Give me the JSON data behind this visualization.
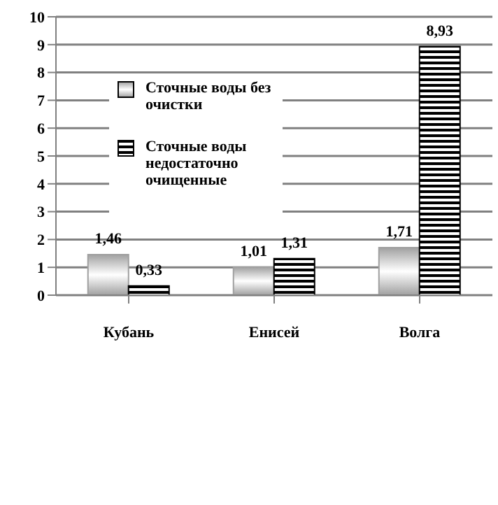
{
  "chart_data": {
    "type": "bar",
    "categories": [
      "Кубань",
      "Енисей",
      "Волга"
    ],
    "series": [
      {
        "name": "Сточные воды без очистки",
        "color": "#a0a0a0",
        "values": [
          1.46,
          1.01,
          1.71
        ],
        "value_labels": [
          "1,46",
          "1,01",
          "1,71"
        ]
      },
      {
        "name": "Сточные воды недостаточно очищенные",
        "color": "#000000",
        "values": [
          0.33,
          1.31,
          8.93
        ],
        "value_labels": [
          "0,33",
          "1,31",
          "8,93"
        ]
      }
    ],
    "ylim": [
      0,
      10
    ],
    "yticks": [
      0,
      1,
      2,
      3,
      4,
      5,
      6,
      7,
      8,
      9,
      10
    ],
    "grid": "y",
    "legend": "top left"
  }
}
